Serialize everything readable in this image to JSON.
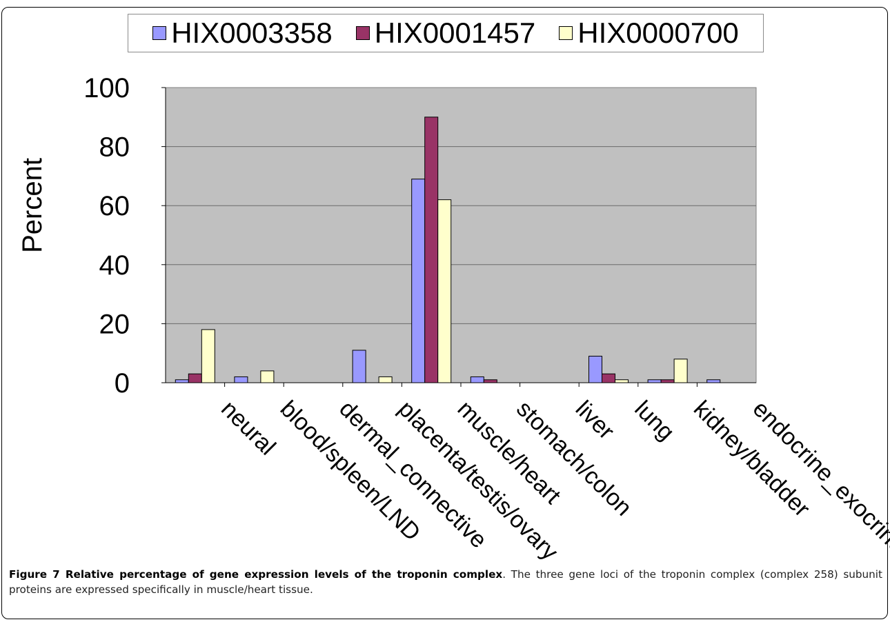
{
  "chart_data": {
    "type": "bar",
    "title": "",
    "xlabel": "",
    "ylabel": "Percent",
    "ylim": [
      0,
      100
    ],
    "yticks": [
      "0",
      "20",
      "40",
      "60",
      "80",
      "100"
    ],
    "grid": true,
    "legend_position": "top",
    "categories": [
      "neural",
      "blood/spleen/LND",
      "dermal_connective",
      "placenta/testis/ovary",
      "muscle/heart",
      "stomach/colon",
      "liver",
      "lung",
      "kidney/bladder",
      "endocrine_exocrine"
    ],
    "series": [
      {
        "name": "HIX0003358",
        "color": "#9999ff",
        "values": [
          1,
          2,
          0,
          11,
          69,
          2,
          0,
          9,
          1,
          1
        ]
      },
      {
        "name": "HIX0001457",
        "color": "#993366",
        "values": [
          3,
          0,
          0,
          0,
          90,
          1,
          0,
          3,
          1,
          0
        ]
      },
      {
        "name": "HIX0000700",
        "color": "#ffffcc",
        "values": [
          18,
          4,
          0,
          2,
          62,
          0,
          0,
          1,
          8,
          0
        ]
      }
    ],
    "plot_background": "#c0c0c0"
  },
  "caption": {
    "title": "Figure 7 Relative percentage of gene expression levels of the troponin complex",
    "text": ". The three gene loci of the troponin complex (complex 258) subunit proteins are expressed specifically in muscle/heart tissue."
  }
}
